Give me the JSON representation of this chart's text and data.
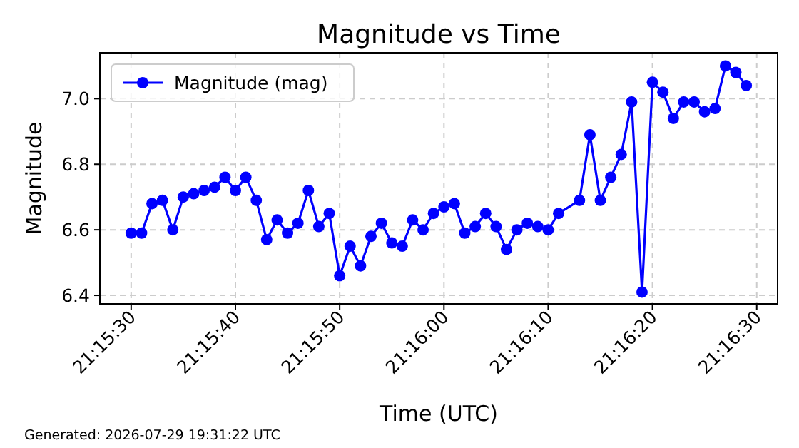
{
  "chart_data": {
    "type": "line",
    "title": "Magnitude vs Time",
    "xlabel": "Time (UTC)",
    "ylabel": "Magnitude",
    "annotations": [
      "Generated: 2026-07-29 19:31:22 UTC"
    ],
    "x": [
      21.258333,
      21.258611,
      21.258889,
      21.259167,
      21.259444,
      21.259722,
      21.26,
      21.260278,
      21.260556,
      21.260833,
      21.261111,
      21.261389,
      21.261667,
      21.261944,
      21.262222,
      21.2625,
      21.262778,
      21.263056,
      21.263333,
      21.263611,
      21.263889,
      21.264167,
      21.264444,
      21.264722,
      21.265,
      21.265278,
      21.265556,
      21.265833,
      21.266111,
      21.266389,
      21.266667,
      21.266944,
      21.267222,
      21.2675,
      21.267778,
      21.268056,
      21.268333,
      21.268611,
      21.268889,
      21.269167,
      21.269444,
      21.269722,
      21.270278,
      21.270556,
      21.270833,
      21.271111,
      21.271389,
      21.271667,
      21.271944,
      21.272222,
      21.2725,
      21.272778,
      21.273056,
      21.273333,
      21.273611,
      21.273889,
      21.274167,
      21.274444,
      21.274722
    ],
    "series": [
      {
        "name": "Magnitude (mag)",
        "color": "#0000ff",
        "values": [
          6.59,
          6.59,
          6.68,
          6.69,
          6.6,
          6.7,
          6.71,
          6.72,
          6.73,
          6.76,
          6.72,
          6.76,
          6.69,
          6.57,
          6.63,
          6.59,
          6.62,
          6.72,
          6.61,
          6.65,
          6.46,
          6.55,
          6.49,
          6.58,
          6.62,
          6.56,
          6.55,
          6.63,
          6.6,
          6.65,
          6.67,
          6.68,
          6.59,
          6.61,
          6.65,
          6.61,
          6.54,
          6.6,
          6.62,
          6.61,
          6.6,
          6.65,
          6.69,
          6.89,
          6.69,
          6.76,
          6.83,
          6.99,
          6.41,
          7.05,
          7.02,
          6.94,
          6.99,
          6.99,
          6.96,
          6.97,
          7.1,
          7.08,
          7.04
        ]
      }
    ],
    "xlim": [
      21.2575,
      21.275556
    ],
    "xticks": [
      {
        "value": 21.258333,
        "label": "21:15:30"
      },
      {
        "value": 21.261111,
        "label": "21:15:40"
      },
      {
        "value": 21.263889,
        "label": "21:15:50"
      },
      {
        "value": 21.266667,
        "label": "21:16:00"
      },
      {
        "value": 21.269444,
        "label": "21:16:10"
      },
      {
        "value": 21.272222,
        "label": "21:16:20"
      },
      {
        "value": 21.275,
        "label": "21:16:30"
      }
    ],
    "ylim": [
      6.374,
      7.14
    ],
    "yticks": [
      6.4,
      6.6,
      6.8,
      {
        "value": 7.0,
        "label": "7.0"
      }
    ],
    "grid": true,
    "legend": "top left",
    "marker": "circle",
    "line_style": "solid"
  }
}
